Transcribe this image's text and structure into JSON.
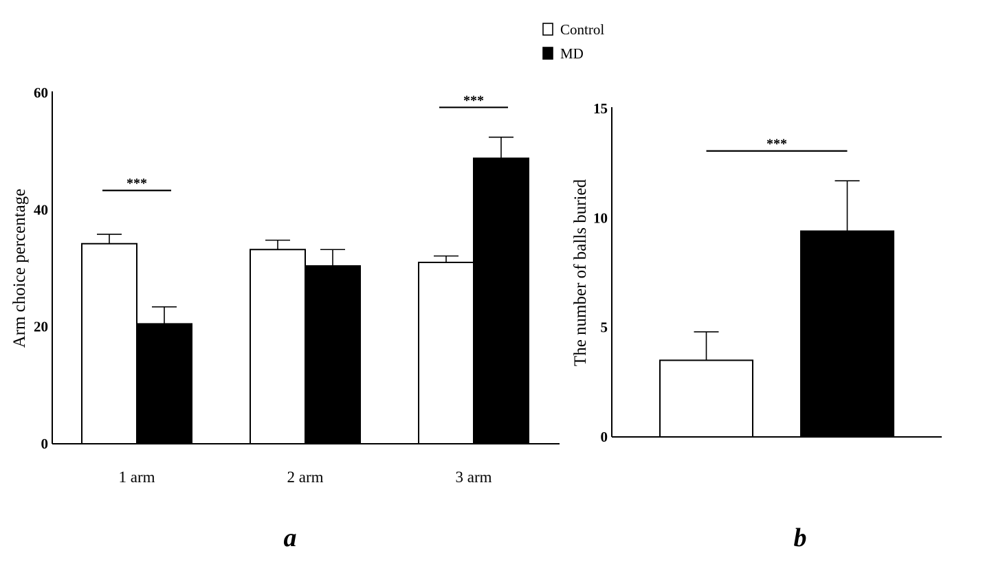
{
  "legend": {
    "items": [
      {
        "label": "Control",
        "fill": "#ffffff"
      },
      {
        "label": "MD",
        "fill": "#000000"
      }
    ]
  },
  "chart_data": [
    {
      "type": "bar",
      "panel_label": "a",
      "categories": [
        "1 arm",
        "2 arm",
        "3 arm"
      ],
      "series": [
        {
          "name": "Control",
          "values": [
            34.2,
            33.2,
            31.0
          ],
          "errors": [
            1.6,
            1.6,
            1.1
          ],
          "color": "#ffffff"
        },
        {
          "name": "MD",
          "values": [
            20.5,
            30.4,
            48.8
          ],
          "errors": [
            2.9,
            2.8,
            3.6
          ],
          "color": "#000000"
        }
      ],
      "ylabel": "Arm choice percentage",
      "xlabel": "",
      "ylim": [
        0,
        60
      ],
      "yticks": [
        "0",
        "20",
        "40",
        "60"
      ],
      "significance": [
        {
          "category": "1 arm",
          "label": "***",
          "y": 43.3
        },
        {
          "category": "3 arm",
          "label": "***",
          "y": 57.5
        }
      ],
      "grid": false
    },
    {
      "type": "bar",
      "panel_label": "b",
      "categories": [
        "Control",
        "MD"
      ],
      "series": [
        {
          "name": "balls buried",
          "values": [
            3.5,
            9.4
          ],
          "errors": [
            1.3,
            2.3
          ],
          "colors": [
            "#ffffff",
            "#000000"
          ]
        }
      ],
      "ylabel": "The number of balls buried",
      "xlabel": "",
      "ylim": [
        0,
        15
      ],
      "yticks": [
        "0",
        "5",
        "10",
        "15"
      ],
      "significance": [
        {
          "label": "***",
          "y": 13.0
        }
      ],
      "grid": false
    }
  ]
}
